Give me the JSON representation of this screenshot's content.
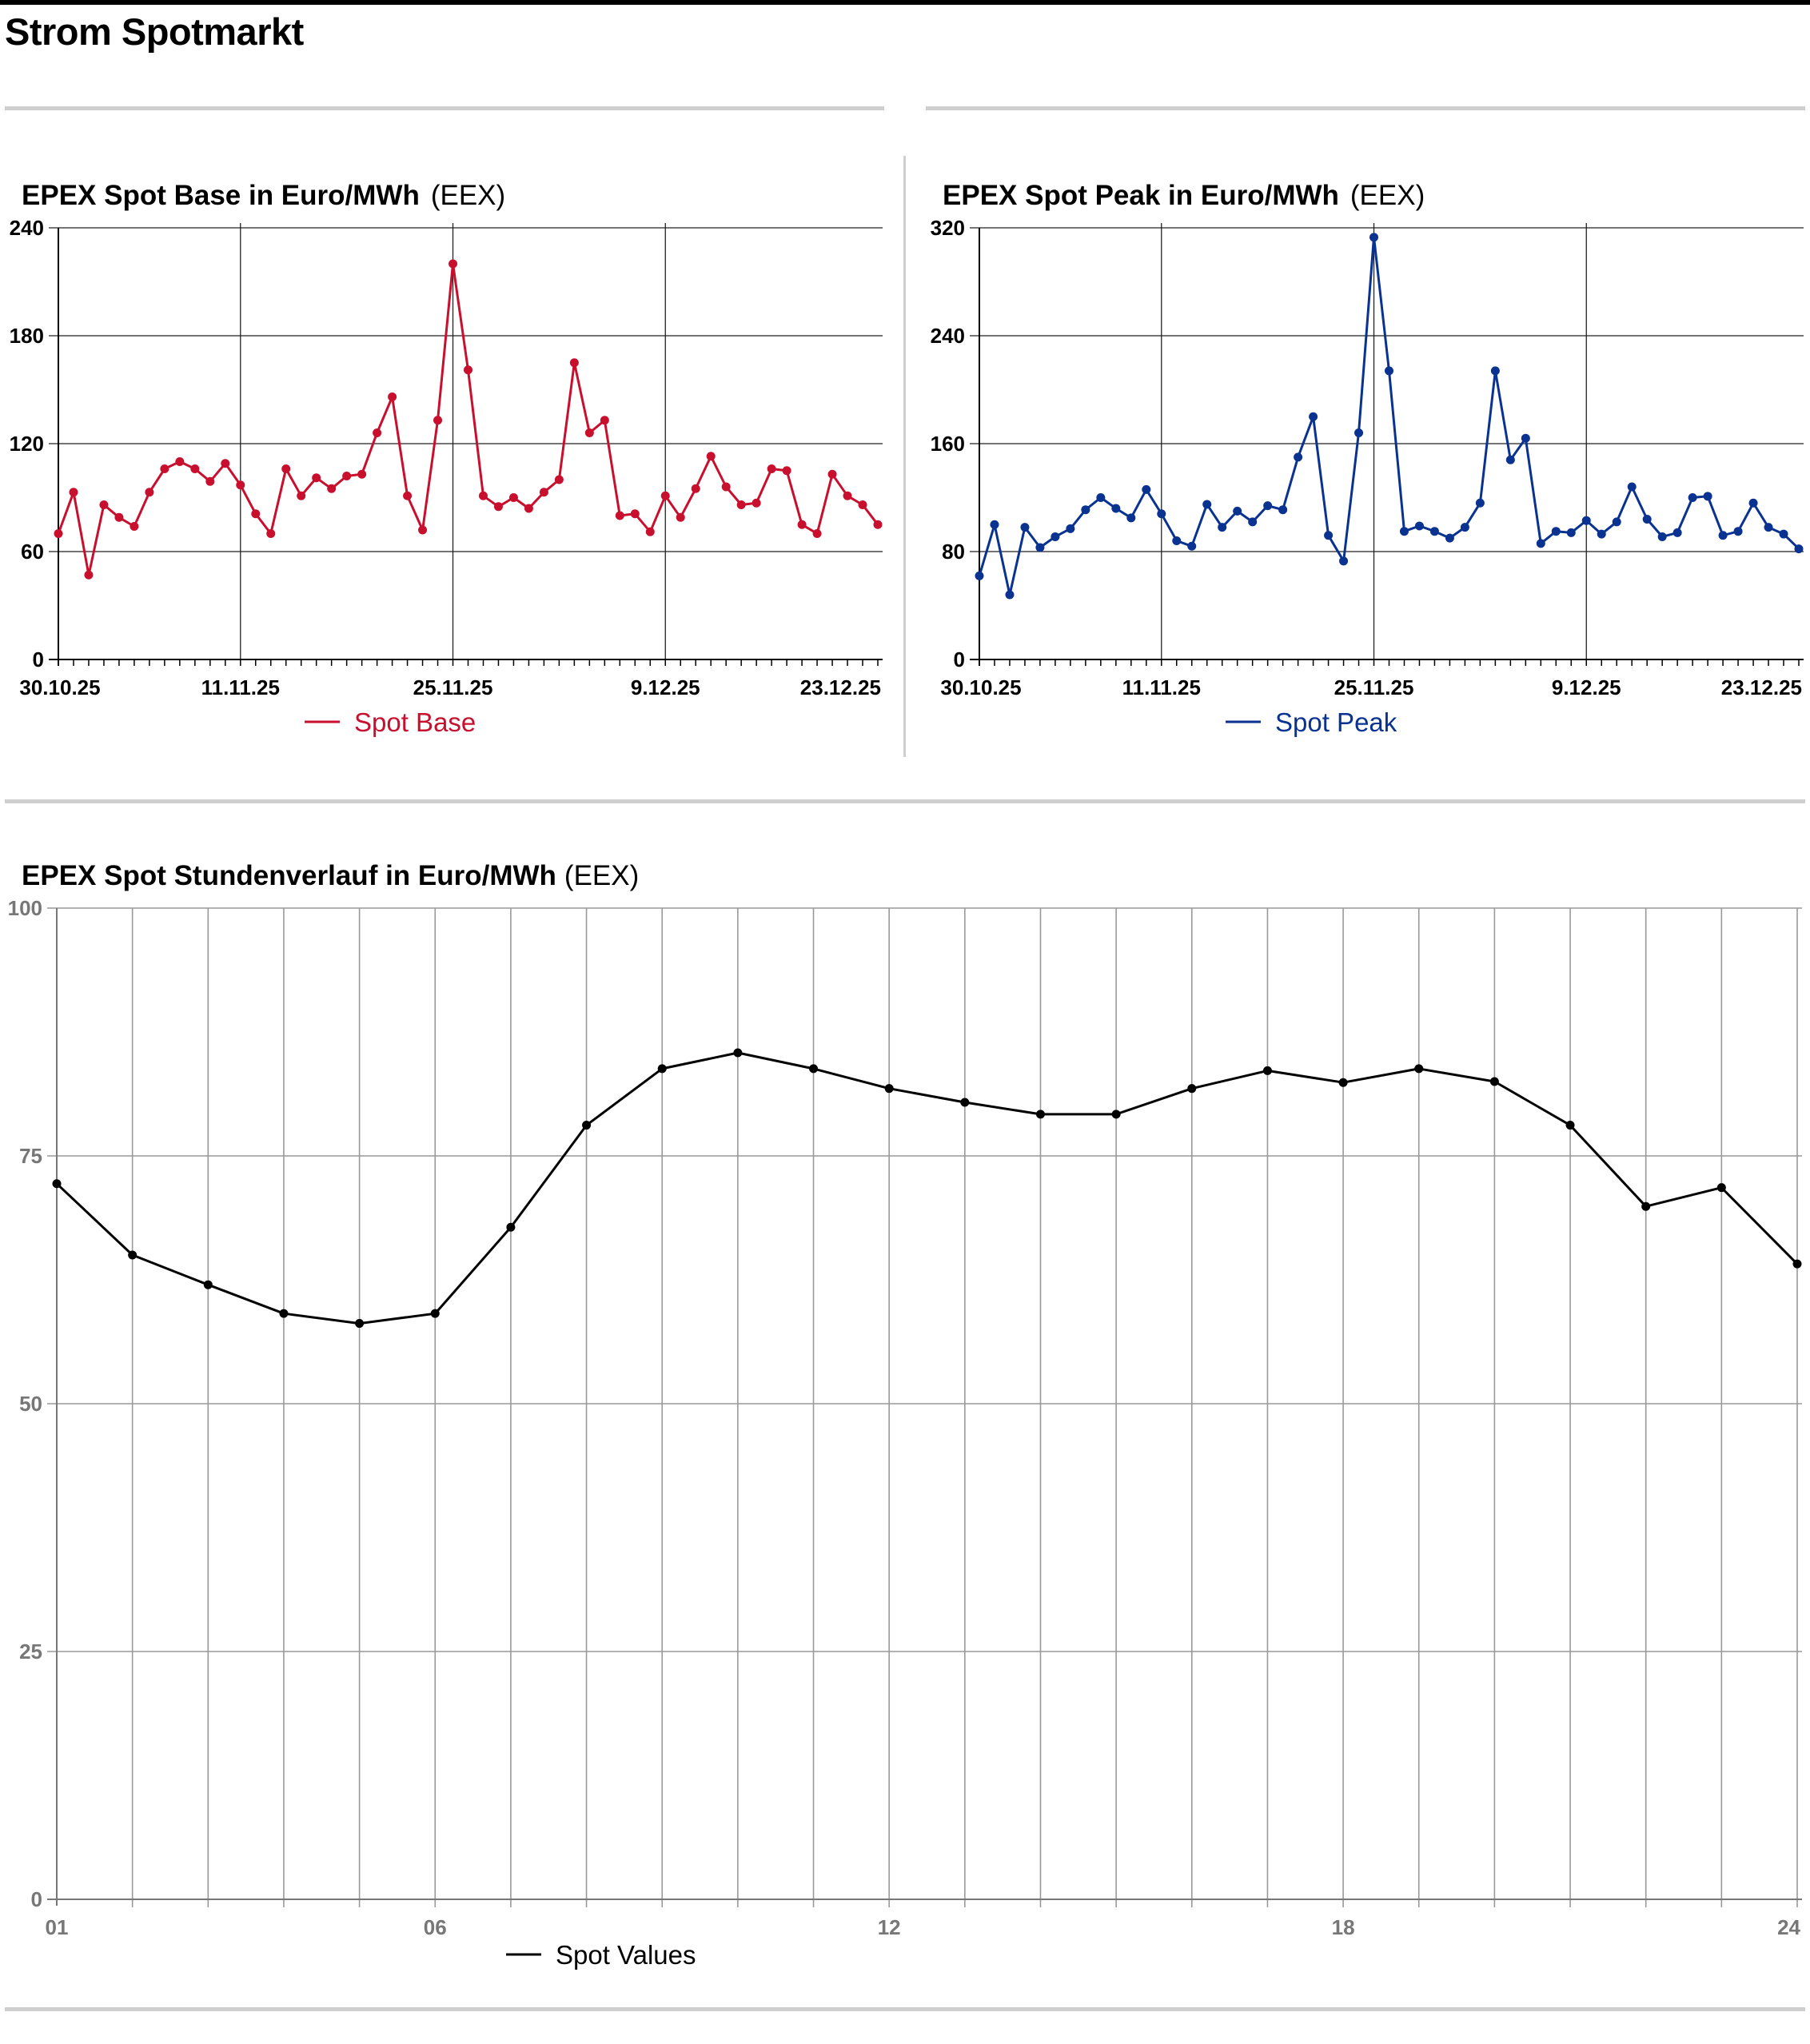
{
  "page": {
    "title": "Strom Spotmarkt"
  },
  "chart_data": [
    {
      "type": "line",
      "title": "EPEX Spot Base in Euro/MWh",
      "source": "(EEX)",
      "color": "#c8102e",
      "series": [
        {
          "name": "Spot Base",
          "values": [
            70,
            93,
            47,
            86,
            79,
            74,
            93,
            106,
            110,
            106,
            99,
            109,
            97,
            81,
            70,
            106,
            91,
            101,
            95,
            102,
            103,
            126,
            146,
            91,
            72,
            133,
            220,
            161,
            91,
            85,
            90,
            84,
            93,
            100,
            165,
            126,
            133,
            80,
            81,
            71,
            91,
            79,
            95,
            113,
            96,
            86,
            87,
            106,
            105,
            75,
            70,
            103,
            91,
            86,
            75
          ]
        }
      ],
      "x_labels": [
        "30.10.25",
        "11.11.25",
        "25.11.25",
        "9.12.25",
        "23.12.25"
      ],
      "x_label_index": [
        0,
        12,
        26,
        40,
        54
      ],
      "ylim": [
        0,
        240
      ],
      "y_ticks": [
        "0",
        "60",
        "120",
        "180",
        "240"
      ],
      "grid": true,
      "legend": "bottom-center"
    },
    {
      "type": "line",
      "title": "EPEX Spot Peak in Euro/MWh",
      "source": "(EEX)",
      "color": "#0a3290",
      "series": [
        {
          "name": "Spot Peak",
          "values": [
            62,
            100,
            48,
            98,
            83,
            91,
            97,
            111,
            120,
            112,
            105,
            126,
            108,
            88,
            84,
            115,
            98,
            110,
            102,
            114,
            111,
            150,
            180,
            92,
            73,
            168,
            313,
            214,
            95,
            99,
            95,
            90,
            98,
            116,
            214,
            148,
            164,
            86,
            95,
            94,
            103,
            93,
            102,
            128,
            104,
            91,
            94,
            120,
            121,
            92,
            95,
            116,
            98,
            93,
            82
          ]
        }
      ],
      "x_labels": [
        "30.10.25",
        "11.11.25",
        "25.11.25",
        "9.12.25",
        "23.12.25"
      ],
      "x_label_index": [
        0,
        12,
        26,
        40,
        54
      ],
      "ylim": [
        0,
        320
      ],
      "y_ticks": [
        "0",
        "80",
        "160",
        "240",
        "320"
      ],
      "grid": true,
      "legend": "bottom-center"
    },
    {
      "type": "line",
      "title": "EPEX Spot Stundenverlauf in Euro/MWh",
      "source": "(EEX)",
      "color": "#000000",
      "x": [
        1,
        2,
        3,
        4,
        5,
        6,
        7,
        8,
        9,
        10,
        11,
        12,
        13,
        14,
        15,
        16,
        17,
        18,
        19,
        20,
        21,
        22,
        23,
        24
      ],
      "series": [
        {
          "name": "Spot Values",
          "values": [
            72.2,
            65.0,
            62.0,
            59.1,
            58.1,
            59.1,
            67.8,
            78.1,
            83.8,
            85.4,
            83.8,
            81.8,
            80.4,
            79.2,
            79.2,
            81.8,
            83.6,
            82.4,
            83.8,
            82.5,
            78.1,
            69.9,
            71.8,
            64.1
          ]
        }
      ],
      "x_labels": [
        "01",
        "06",
        "12",
        "18",
        "24"
      ],
      "x_label_index": [
        0,
        5,
        11,
        17,
        23
      ],
      "ylim": [
        0,
        100
      ],
      "y_ticks": [
        "0",
        "25",
        "50",
        "75",
        "100"
      ],
      "grid": true,
      "legend": "bottom-center"
    }
  ]
}
